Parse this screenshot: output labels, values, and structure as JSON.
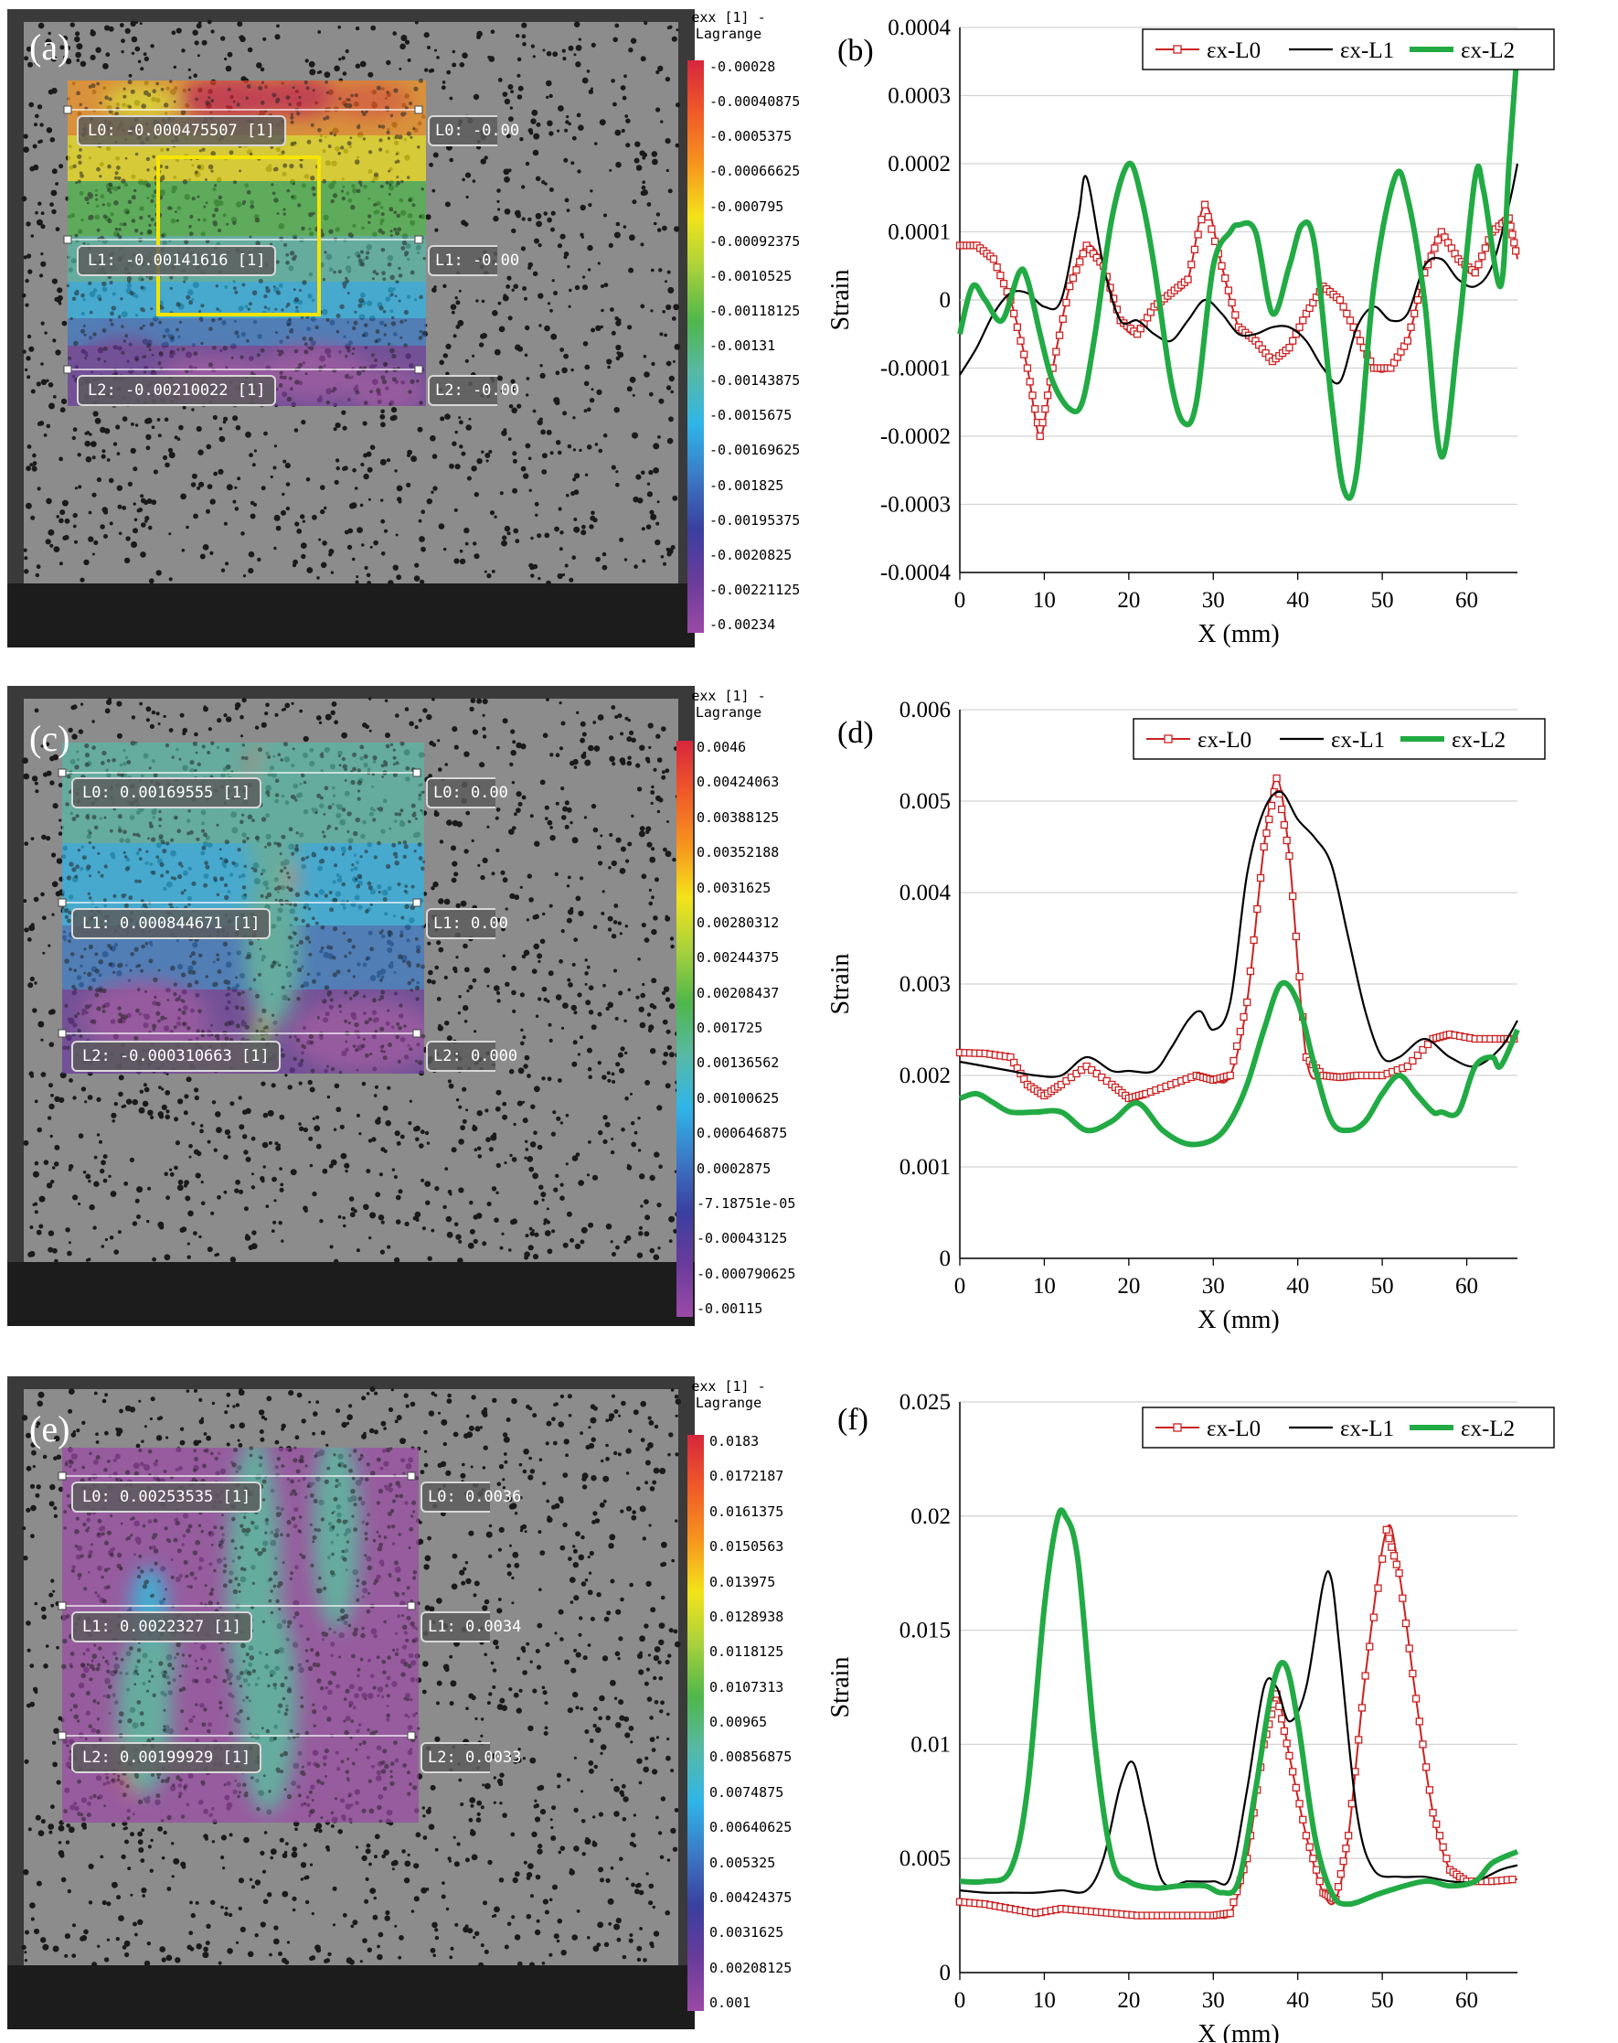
{
  "panels": [
    {
      "photo": {
        "letter": "(a)",
        "colorbar_title": [
          "exx [1] -",
          "Lagrange"
        ],
        "ticks": [
          "-0.00028",
          "-0.00040875",
          "-0.0005375",
          "-0.00066625",
          "-0.000795",
          "-0.00092375",
          "-0.0010525",
          "-0.00118125",
          "-0.00131",
          "-0.00143875",
          "-0.0015675",
          "-0.00169625",
          "-0.001825",
          "-0.00195375",
          "-0.0020825",
          "-0.00221125",
          "-0.00234"
        ],
        "labels_left": [
          "L0: -0.000475507 [1]",
          "L1: -0.00141616 [1]",
          "L2: -0.00210022 [1]"
        ],
        "labels_right": [
          "L0: -0.00",
          "L1: -0.00",
          "L2: -0.00"
        ],
        "has_box": true
      },
      "chart_data": {
        "type": "line",
        "letter": "(b)",
        "xlabel": "X (mm)",
        "ylabel": "Strain",
        "xlim": [
          0,
          66
        ],
        "ylim": [
          -0.0004,
          0.0004
        ],
        "yticks": [
          "-0.0004",
          "-0.0003",
          "-0.0002",
          "-0.0001",
          "0",
          "0.0001",
          "0.0002",
          "0.0003",
          "0.0004"
        ],
        "xticks": [
          "0",
          "10",
          "20",
          "30",
          "40",
          "50",
          "60"
        ],
        "legend": [
          "εx-L0",
          "εx-L1",
          "εx-L2"
        ],
        "series": [
          {
            "name": "εx-L0",
            "x": [
              0,
              2,
              4,
              6,
              8,
              9.5,
              11,
              13,
              15,
              17,
              19,
              21,
              23,
              25,
              27,
              29,
              31,
              33,
              35,
              37,
              39,
              41,
              43,
              45,
              47,
              49,
              51,
              53,
              55,
              57,
              59,
              61,
              63,
              65,
              66
            ],
            "y": [
              8e-05,
              8e-05,
              6e-05,
              0.0,
              -0.0001,
              -0.0002,
              -0.0001,
              2e-05,
              8e-05,
              5e-05,
              -3e-05,
              -5e-05,
              -1e-05,
              1e-05,
              3e-05,
              0.00014,
              5e-05,
              -4e-05,
              -6e-05,
              -9e-05,
              -7e-05,
              -2e-05,
              2e-05,
              0.0,
              -5e-05,
              -0.0001,
              -0.0001,
              -6e-05,
              4e-05,
              0.0001,
              6e-05,
              4e-05,
              0.0001,
              0.00012,
              6e-05
            ]
          },
          {
            "name": "εx-L1",
            "x": [
              0,
              2,
              4,
              6,
              8,
              10,
              12,
              14,
              15,
              17,
              19,
              21,
              23,
              25,
              27,
              29,
              31,
              33,
              35,
              37,
              39,
              41,
              43,
              45,
              47,
              49,
              51,
              53,
              55,
              57,
              59,
              61,
              63,
              65,
              66
            ],
            "y": [
              -0.00011,
              -7e-05,
              -2e-05,
              1e-05,
              1e-05,
              -1e-05,
              0.0,
              0.00012,
              0.00018,
              5e-05,
              -3e-05,
              -3e-05,
              -5e-05,
              -6e-05,
              -3e-05,
              0.0,
              -2e-05,
              -5e-05,
              -5e-05,
              -4e-05,
              -4e-05,
              -6e-05,
              -0.0001,
              -0.00012,
              -4e-05,
              -1e-05,
              -3e-05,
              -2e-05,
              5e-05,
              6e-05,
              3e-05,
              2e-05,
              5e-05,
              0.00014,
              0.0002
            ]
          },
          {
            "name": "εx-L2",
            "x": [
              0,
              1.5,
              3,
              5,
              7,
              8,
              9.5,
              11,
              13,
              14.5,
              16,
              18,
              20,
              21.5,
              23,
              25,
              26.5,
              28,
              30,
              32,
              33,
              35,
              37,
              39,
              40.5,
              42,
              44,
              45.5,
              47,
              49,
              51.5,
              53,
              55,
              57,
              59,
              61,
              62,
              64,
              65,
              66
            ],
            "y": [
              -5e-05,
              2e-05,
              0.0,
              -3e-05,
              4e-05,
              3e-05,
              -5e-05,
              -0.00012,
              -0.00016,
              -0.00015,
              -5e-05,
              0.00012,
              0.0002,
              0.00015,
              5e-05,
              -0.00012,
              -0.00018,
              -0.00015,
              5e-05,
              0.0001,
              0.00011,
              0.0001,
              -2e-05,
              5e-05,
              0.00011,
              8e-05,
              -0.00015,
              -0.00028,
              -0.00025,
              2e-05,
              0.00018,
              0.00015,
              0.0,
              -0.00023,
              -5e-05,
              0.00018,
              0.00016,
              2e-05,
              0.0002,
              0.00037
            ]
          }
        ]
      }
    },
    {
      "photo": {
        "letter": "(c)",
        "colorbar_title": [
          "exx [1] -",
          "Lagrange"
        ],
        "ticks": [
          "0.0046",
          "0.00424063",
          "0.00388125",
          "0.00352188",
          "0.0031625",
          "0.00280312",
          "0.00244375",
          "0.00208437",
          "0.001725",
          "0.00136562",
          "0.00100625",
          "0.000646875",
          "0.0002875",
          "-7.18751e-05",
          "-0.00043125",
          "-0.000790625",
          "-0.00115"
        ],
        "labels_left": [
          "L0: 0.00169555 [1]",
          "L1: 0.000844671 [1]",
          "L2: -0.000310663 [1]"
        ],
        "labels_right": [
          "L0: 0.00",
          "L1: 0.00",
          "L2: 0.000"
        ],
        "has_box": false
      },
      "chart_data": {
        "type": "line",
        "letter": "(d)",
        "xlabel": "X (mm)",
        "ylabel": "Strain",
        "xlim": [
          0,
          66
        ],
        "ylim": [
          0,
          0.006
        ],
        "yticks": [
          "0",
          "0.001",
          "0.002",
          "0.003",
          "0.004",
          "0.005",
          "0.006"
        ],
        "xticks": [
          "0",
          "10",
          "20",
          "30",
          "40",
          "50",
          "60"
        ],
        "legend": [
          "εx-L0",
          "εx-L1",
          "εx-L2"
        ],
        "series": [
          {
            "name": "εx-L0",
            "x": [
              0,
              3,
              6,
              8,
              10,
              12,
              15,
              18,
              20,
              22,
              25,
              28,
              30,
              32,
              34,
              36,
              37.5,
              39,
              41,
              43,
              45,
              47,
              50,
              53,
              56,
              58,
              61,
              64,
              66
            ],
            "y": [
              0.00225,
              0.00224,
              0.0022,
              0.0019,
              0.00178,
              0.0019,
              0.0021,
              0.0019,
              0.00175,
              0.0018,
              0.0019,
              0.002,
              0.00195,
              0.002,
              0.0028,
              0.0045,
              0.00525,
              0.0044,
              0.0022,
              0.002,
              0.00198,
              0.002,
              0.002,
              0.0021,
              0.0024,
              0.00245,
              0.0024,
              0.0024,
              0.0024
            ]
          },
          {
            "name": "εx-L1",
            "x": [
              0,
              3,
              6,
              9,
              12,
              15,
              18,
              20,
              23,
              25,
              27,
              28.5,
              30,
              32,
              34,
              36,
              38,
              40,
              42,
              44,
              46,
              48,
              50,
              52,
              55,
              58,
              61,
              64,
              66
            ],
            "y": [
              0.00215,
              0.0021,
              0.00205,
              0.002,
              0.002,
              0.0022,
              0.00205,
              0.00205,
              0.00205,
              0.0023,
              0.0026,
              0.0027,
              0.0025,
              0.0028,
              0.0042,
              0.0049,
              0.0051,
              0.0048,
              0.0046,
              0.0043,
              0.0035,
              0.0027,
              0.0022,
              0.0022,
              0.0024,
              0.0022,
              0.0021,
              0.0023,
              0.0026
            ]
          },
          {
            "name": "εx-L2",
            "x": [
              0,
              2,
              4,
              6,
              9,
              12,
              15,
              18,
              21,
              24,
              27,
              30,
              32,
              34,
              36,
              38,
              40,
              42,
              44,
              46,
              48,
              50,
              52,
              54,
              56,
              57,
              59,
              61,
              63,
              64,
              66
            ],
            "y": [
              0.00175,
              0.0018,
              0.0017,
              0.0016,
              0.0016,
              0.0016,
              0.0014,
              0.0015,
              0.0017,
              0.0014,
              0.00125,
              0.0013,
              0.0015,
              0.0019,
              0.0025,
              0.003,
              0.0028,
              0.0021,
              0.0015,
              0.0014,
              0.0015,
              0.0018,
              0.002,
              0.0018,
              0.0016,
              0.0016,
              0.0016,
              0.0021,
              0.0022,
              0.0021,
              0.0025
            ]
          }
        ]
      }
    },
    {
      "photo": {
        "letter": "(e)",
        "colorbar_title": [
          "exx [1] -",
          "Lagrange"
        ],
        "ticks": [
          "0.0183",
          "0.0172187",
          "0.0161375",
          "0.0150563",
          "0.013975",
          "0.0128938",
          "0.0118125",
          "0.0107313",
          "0.00965",
          "0.00856875",
          "0.0074875",
          "0.00640625",
          "0.005325",
          "0.00424375",
          "0.0031625",
          "0.00208125",
          "0.001"
        ],
        "labels_left": [
          "L0: 0.00253535 [1]",
          "L1: 0.0022327 [1]",
          "L2: 0.00199929 [1]"
        ],
        "labels_right": [
          "L0: 0.0036",
          "L1: 0.0034",
          "L2: 0.0033"
        ],
        "has_box": false
      },
      "chart_data": {
        "type": "line",
        "letter": "(f)",
        "xlabel": "X (mm)",
        "ylabel": "Strain",
        "xlim": [
          0,
          66
        ],
        "ylim": [
          0,
          0.025
        ],
        "yticks": [
          "0",
          "0.005",
          "0.01",
          "0.015",
          "0.02",
          "0.025"
        ],
        "xticks": [
          "0",
          "10",
          "20",
          "30",
          "40",
          "50",
          "60"
        ],
        "legend": [
          "εx-L0",
          "εx-L1",
          "εx-L2"
        ],
        "series": [
          {
            "name": "εx-L0",
            "x": [
              0,
              3,
              6,
              9,
              12,
              15,
              18,
              21,
              24,
              27,
              30,
              32,
              34,
              36,
              37.5,
              39,
              41,
              43,
              44.5,
              46,
              48,
              50.5,
              52,
              54,
              56,
              58,
              60,
              63,
              66
            ],
            "y": [
              0.0031,
              0.003,
              0.0028,
              0.0026,
              0.0028,
              0.0027,
              0.0026,
              0.0025,
              0.0025,
              0.0025,
              0.0025,
              0.0026,
              0.005,
              0.01,
              0.0122,
              0.0095,
              0.006,
              0.0035,
              0.0032,
              0.006,
              0.013,
              0.0194,
              0.0175,
              0.012,
              0.007,
              0.0045,
              0.004,
              0.004,
              0.0041
            ]
          },
          {
            "name": "εx-L1",
            "x": [
              0,
              3,
              6,
              9,
              12,
              15,
              17,
              19,
              20.5,
              22,
              24,
              27,
              30,
              32,
              34,
              36,
              37.5,
              39,
              41,
              43,
              44,
              45,
              47,
              49,
              52,
              55,
              58,
              61,
              64,
              66
            ],
            "y": [
              0.0036,
              0.0035,
              0.0035,
              0.0035,
              0.0036,
              0.0036,
              0.005,
              0.0082,
              0.0092,
              0.007,
              0.004,
              0.004,
              0.004,
              0.0042,
              0.008,
              0.0125,
              0.0125,
              0.011,
              0.0125,
              0.017,
              0.0172,
              0.014,
              0.007,
              0.0045,
              0.0042,
              0.0042,
              0.004,
              0.004,
              0.0045,
              0.0047
            ]
          },
          {
            "name": "εx-L2",
            "x": [
              0,
              3,
              6,
              8,
              10,
              11.5,
              12.5,
              14,
              16,
              18,
              20,
              23,
              26,
              29,
              31,
              33,
              35,
              37,
              38.5,
              40,
              42,
              44,
              46,
              50,
              55,
              58,
              61,
              63,
              66
            ],
            "y": [
              0.004,
              0.004,
              0.0045,
              0.008,
              0.016,
              0.0198,
              0.02,
              0.018,
              0.01,
              0.005,
              0.004,
              0.0037,
              0.0038,
              0.0038,
              0.0035,
              0.004,
              0.008,
              0.0125,
              0.0135,
              0.011,
              0.006,
              0.0035,
              0.003,
              0.0035,
              0.004,
              0.0038,
              0.004,
              0.0048,
              0.0053
            ]
          }
        ]
      }
    }
  ],
  "colors": {
    "L0": "#cc2222",
    "L1": "#000000",
    "L2": "#22aa44",
    "heat": [
      "#d7263d",
      "#f05a28",
      "#f7941d",
      "#f4e31a",
      "#a8d13c",
      "#4fb74a",
      "#57b9a5",
      "#2fb5e8",
      "#3b79c6",
      "#3a3fa0",
      "#6a3b9b",
      "#9b4aa6"
    ]
  }
}
